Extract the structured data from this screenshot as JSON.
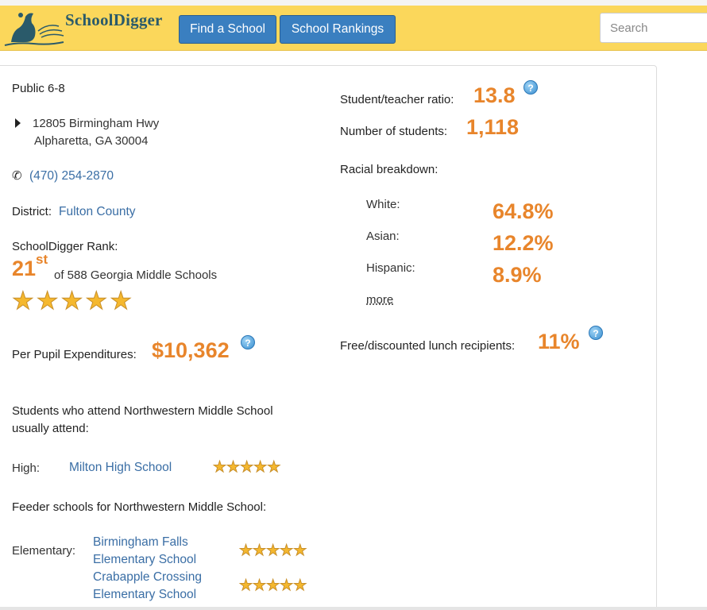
{
  "header": {
    "logo_text": "SchoolDigger",
    "nav": [
      {
        "label": "Find a School"
      },
      {
        "label": "School Rankings"
      }
    ],
    "search_placeholder": "Search"
  },
  "school": {
    "type": "Public 6-8",
    "address_line1": "12805 Birmingham Hwy",
    "address_line2": "Alpharetta, GA  30004",
    "phone": "(470) 254-2870",
    "district_label": "District:",
    "district": "Fulton County",
    "rank_label": "SchoolDigger Rank:",
    "rank_number": "21",
    "rank_suffix": "st",
    "rank_of": "of 588 Georgia Middle Schools",
    "rank_stars": 5,
    "ppe_label": "Per Pupil Expenditures:",
    "ppe_value": "$10,362"
  },
  "attend": {
    "heading_line1": "Students who attend Northwestern Middle School",
    "heading_line2": "usually attend:",
    "level": "High:",
    "school": "Milton High School",
    "stars": 5
  },
  "feeder": {
    "heading": "Feeder schools for Northwestern Middle School:",
    "level": "Elementary:",
    "schools": [
      {
        "line1": "Birmingham Falls",
        "line2": "Elementary School",
        "stars": 5
      },
      {
        "line1": "Crabapple Crossing",
        "line2": "Elementary School",
        "stars": 5
      }
    ]
  },
  "stats": {
    "ratio_label": "Student/teacher ratio:",
    "ratio_value": "13.8",
    "students_label": "Number of students:",
    "students_value": "1,118",
    "racial_label": "Racial breakdown:",
    "racial": [
      {
        "label": "White:",
        "value": "64.8%"
      },
      {
        "label": "Asian:",
        "value": "12.2%"
      },
      {
        "label": "Hispanic:",
        "value": "8.9%"
      }
    ],
    "more_label": "more",
    "lunch_label": "Free/discounted lunch recipients:",
    "lunch_value": "11%"
  },
  "icons": {
    "help": "?",
    "star": "★",
    "phone": "✆"
  },
  "colors": {
    "header_bg": "#fbd75b",
    "button_bg": "#3a7fc0",
    "link": "#3a6ea5",
    "accent_orange": "#e8852b",
    "star": "#f5b82e"
  }
}
